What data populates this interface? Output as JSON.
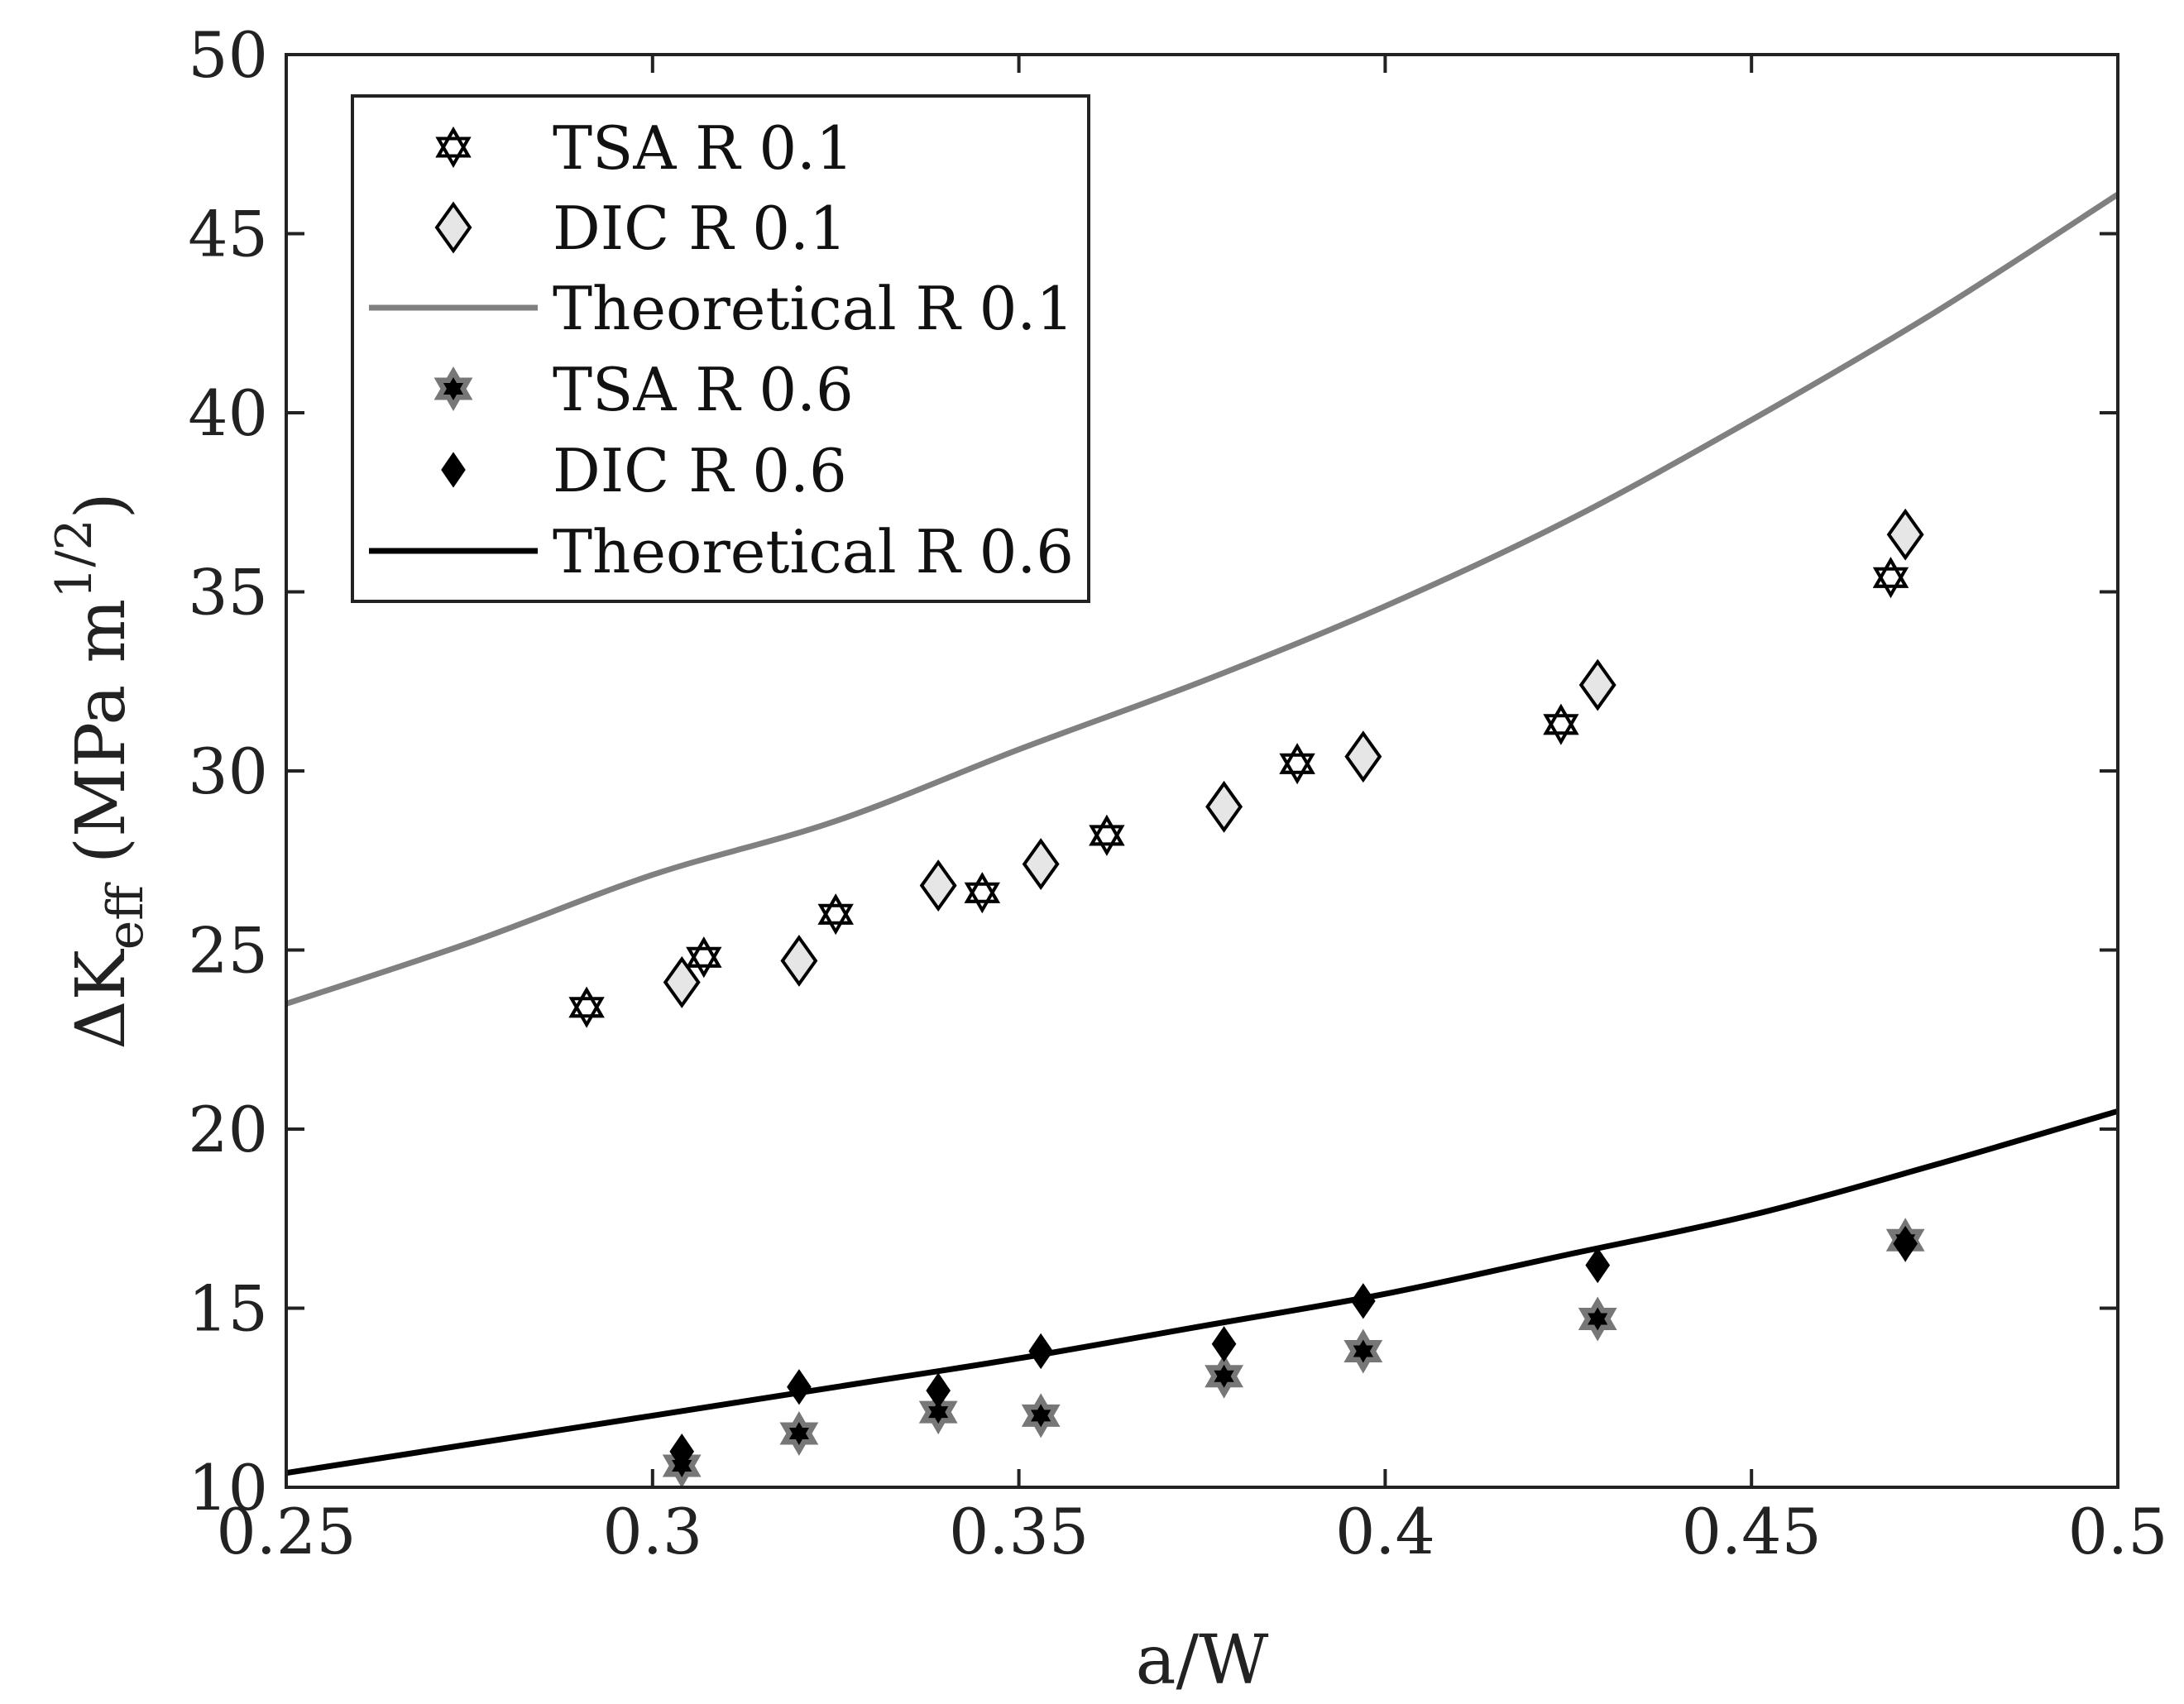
{
  "chart_data": {
    "type": "scatter",
    "title": "",
    "xlabel": "a/W",
    "ylabel": {
      "prefix": "ΔK",
      "sub": "eff",
      "units_open": " (MPa m",
      "sup": "1/2",
      "units_close": ")"
    },
    "xlim": [
      0.25,
      0.5
    ],
    "ylim": [
      10,
      50
    ],
    "xticks": [
      0.25,
      0.3,
      0.35,
      0.4,
      0.45,
      0.5
    ],
    "xtick_labels": [
      "0.25",
      "0.3",
      "0.35",
      "0.4",
      "0.45",
      "0.5"
    ],
    "yticks": [
      10,
      15,
      20,
      25,
      30,
      35,
      40,
      45,
      50
    ],
    "ytick_labels": [
      "10",
      "15",
      "20",
      "25",
      "30",
      "35",
      "40",
      "45",
      "50"
    ],
    "grid": false,
    "legend_position": "top-left",
    "series": [
      {
        "name": "TSA R 0.1",
        "kind": "markers",
        "marker": "hexagram",
        "color": "#000000",
        "fill": "#ffffff",
        "x": [
          0.291,
          0.307,
          0.325,
          0.345,
          0.362,
          0.388,
          0.424,
          0.469
        ],
        "y": [
          23.4,
          24.8,
          26.0,
          26.6,
          28.2,
          30.2,
          31.3,
          35.4
        ]
      },
      {
        "name": "DIC R 0.1",
        "kind": "markers",
        "marker": "diamond",
        "color": "#000000",
        "fill": "#e6e6e6",
        "x": [
          0.304,
          0.32,
          0.339,
          0.353,
          0.378,
          0.397,
          0.429,
          0.471
        ],
        "y": [
          24.1,
          24.7,
          26.8,
          27.4,
          29.0,
          30.4,
          32.4,
          36.6
        ]
      },
      {
        "name": "Theoretical R 0.1",
        "kind": "line",
        "color": "#808080",
        "x": [
          0.25,
          0.275,
          0.3,
          0.325,
          0.35,
          0.375,
          0.4,
          0.425,
          0.45,
          0.475,
          0.5
        ],
        "y": [
          23.5,
          25.2,
          27.1,
          28.6,
          30.6,
          32.5,
          34.6,
          37.0,
          39.8,
          42.8,
          46.1
        ]
      },
      {
        "name": "TSA R 0.6",
        "kind": "markers",
        "marker": "hexagram-filled",
        "color": "#777777",
        "fill": "#000000",
        "x": [
          0.304,
          0.32,
          0.339,
          0.353,
          0.378,
          0.397,
          0.429,
          0.471
        ],
        "y": [
          10.6,
          11.5,
          12.1,
          12.0,
          13.1,
          13.8,
          14.7,
          16.9
        ]
      },
      {
        "name": "DIC R 0.6",
        "kind": "markers",
        "marker": "diamond-filled",
        "color": "#000000",
        "fill": "#000000",
        "x": [
          0.304,
          0.32,
          0.339,
          0.353,
          0.378,
          0.397,
          0.429,
          0.471
        ],
        "y": [
          11.0,
          12.8,
          12.7,
          13.8,
          14.0,
          15.2,
          16.2,
          16.8
        ]
      },
      {
        "name": "Theoretical R 0.6",
        "kind": "line",
        "color": "#000000",
        "x": [
          0.25,
          0.275,
          0.3,
          0.325,
          0.35,
          0.375,
          0.4,
          0.425,
          0.45,
          0.475,
          0.5
        ],
        "y": [
          10.4,
          11.2,
          12.0,
          12.8,
          13.6,
          14.5,
          15.4,
          16.5,
          17.6,
          19.0,
          20.5
        ]
      }
    ]
  }
}
